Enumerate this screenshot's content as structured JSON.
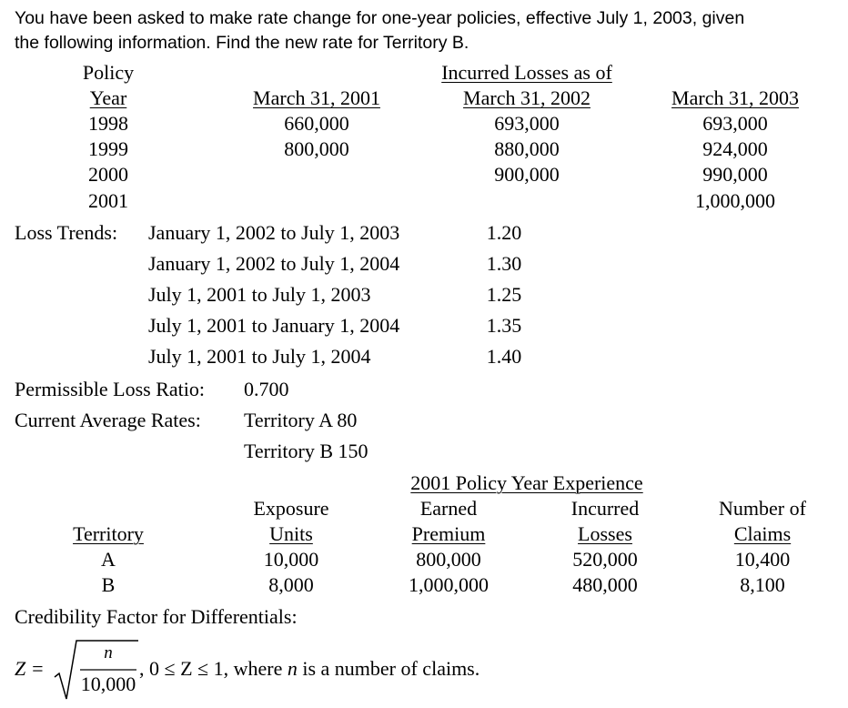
{
  "intro": {
    "line1": "You have been asked to make rate change for one-year policies, effective July 1, 2003, given",
    "line2": "the following information.  Find the new rate for Territory B."
  },
  "losses_table": {
    "policy_label": "Policy",
    "year_label": "Year",
    "group_header": "Incurred Losses as of",
    "columns": [
      "March 31, 2001",
      "March 31, 2002",
      "March 31, 2003"
    ],
    "rows": [
      {
        "year": "1998",
        "values": [
          "660,000",
          "693,000",
          "693,000"
        ]
      },
      {
        "year": "1999",
        "values": [
          "800,000",
          "880,000",
          "924,000"
        ]
      },
      {
        "year": "2000",
        "values": [
          "",
          "900,000",
          "990,000"
        ]
      },
      {
        "year": "2001",
        "values": [
          "",
          "",
          "1,000,000"
        ]
      }
    ]
  },
  "loss_trends": {
    "label": "Loss Trends:",
    "items": [
      {
        "period": "January 1, 2002 to July 1, 2003",
        "factor": "1.20"
      },
      {
        "period": "January 1, 2002 to July 1, 2004",
        "factor": "1.30"
      },
      {
        "period": "July 1, 2001 to July 1, 2003",
        "factor": "1.25"
      },
      {
        "period": "July 1, 2001 to January 1, 2004",
        "factor": "1.35"
      },
      {
        "period": "July 1, 2001 to July 1, 2004",
        "factor": "1.40"
      }
    ]
  },
  "permissible_loss_ratio": {
    "label": "Permissible Loss Ratio:",
    "value": "0.700"
  },
  "current_rates": {
    "label": "Current Average Rates:",
    "territory_a": "Territory A 80",
    "territory_b": "Territory B 150"
  },
  "experience": {
    "title": "2001 Policy Year Experience",
    "headers": {
      "territory": "Territory",
      "exposure": [
        "Exposure",
        "Units"
      ],
      "earned": [
        "Earned",
        "Premium"
      ],
      "incurred": [
        "Incurred",
        "Losses"
      ],
      "claims": [
        "Number of",
        "Claims"
      ]
    },
    "rows": [
      {
        "territory": "A",
        "exposure": "10,000",
        "earned": "800,000",
        "incurred": "520,000",
        "claims": "10,400"
      },
      {
        "territory": "B",
        "exposure": "8,000",
        "earned": "1,000,000",
        "incurred": "480,000",
        "claims": "8,100"
      }
    ]
  },
  "credibility": {
    "label": "Credibility Factor for Differentials:",
    "lhs": "Z =",
    "numerator": "n",
    "denominator": "10,000",
    "condition": ",  0 ≤ Z ≤ 1, where",
    "var": "n",
    "tail": "is a number of claims."
  }
}
